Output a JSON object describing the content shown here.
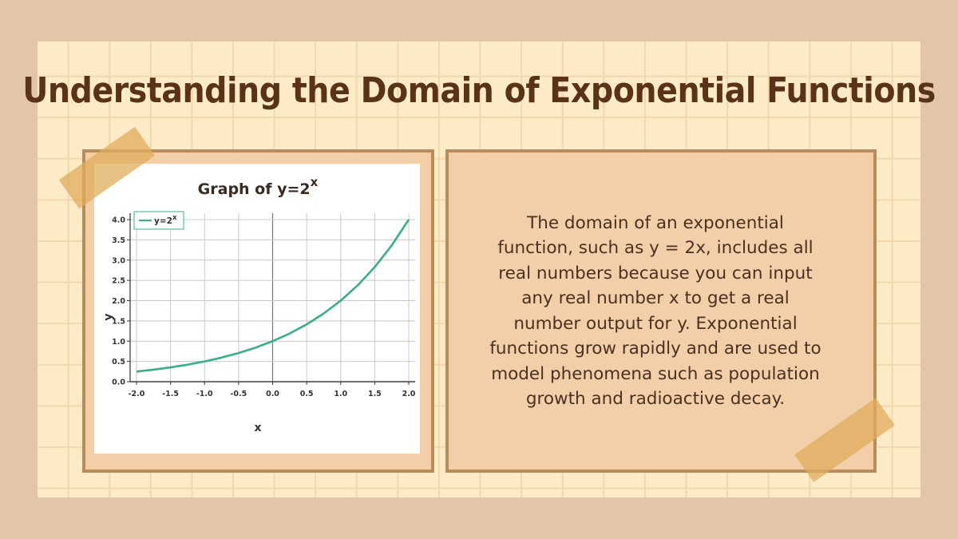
{
  "slide": {
    "title": "Understanding the Domain of Exponential Functions",
    "body": "The domain of an exponential function, such as y = 2x, includes all real numbers because you can input any real number x to get a real number output for y. Exponential functions grow rapidly and are used to model phenomena such as population growth and radioactive decay."
  },
  "colors": {
    "background": "#e3c6a8",
    "paper": "#fdeac7",
    "frame": "#b98c5c",
    "tape": "#e0ac5c",
    "title": "#5a3218",
    "line": "#3aae8a"
  },
  "chart_data": {
    "type": "line",
    "title": "Graph of y=2",
    "title_superscript": "x",
    "xlabel": "x",
    "ylabel": "y",
    "xlim": [
      -2.0,
      2.0
    ],
    "ylim": [
      0.0,
      4.0
    ],
    "x_ticks": [
      "-2.0",
      "-1.5",
      "-1.0",
      "-0.5",
      "0.0",
      "0.5",
      "1.0",
      "1.5",
      "2.0"
    ],
    "y_ticks": [
      "0.0",
      "0.5",
      "1.0",
      "1.5",
      "2.0",
      "2.5",
      "3.0",
      "3.5",
      "4.0"
    ],
    "grid": true,
    "legend_position": "top-left",
    "series": [
      {
        "name": "y=2",
        "name_superscript": "x",
        "color": "#3aae8a",
        "x": [
          -2.0,
          -1.75,
          -1.5,
          -1.25,
          -1.0,
          -0.75,
          -0.5,
          -0.25,
          0.0,
          0.25,
          0.5,
          0.75,
          1.0,
          1.25,
          1.5,
          1.75,
          2.0
        ],
        "y": [
          0.25,
          0.297,
          0.354,
          0.42,
          0.5,
          0.595,
          0.707,
          0.841,
          1.0,
          1.189,
          1.414,
          1.682,
          2.0,
          2.378,
          2.828,
          3.364,
          4.0
        ]
      }
    ]
  }
}
